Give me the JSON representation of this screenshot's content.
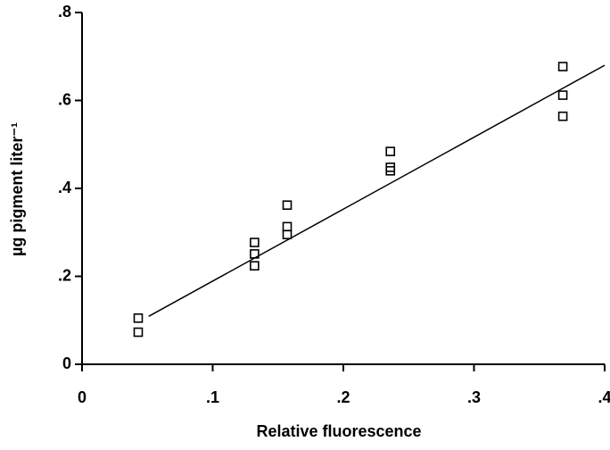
{
  "chart_data": {
    "type": "scatter",
    "xlabel": "Relative fluorescence",
    "ylabel": "µg pigment liter⁻¹",
    "xlim": [
      0,
      0.4
    ],
    "ylim": [
      0,
      0.8
    ],
    "xticks": [
      0,
      {
        "value": 0.1,
        "label": ".1"
      },
      {
        "value": 0.2,
        "label": ".2"
      },
      {
        "value": 0.3,
        "label": ".3"
      },
      {
        "value": 0.4,
        "label": ".4"
      }
    ],
    "yticks": [
      0,
      {
        "value": 0.2,
        "label": ".2"
      },
      {
        "value": 0.4,
        "label": ".4"
      },
      {
        "value": 0.6,
        "label": ".6"
      },
      {
        "value": 0.8,
        "label": ".8"
      }
    ],
    "series": [
      {
        "color": "#000000",
        "marker": "square",
        "x": [
          0.043,
          0.043,
          0.132,
          0.132,
          0.132,
          0.157,
          0.157,
          0.157,
          0.236,
          0.236,
          0.236,
          0.368,
          0.368,
          0.368
        ],
        "values": [
          0.105,
          0.073,
          0.277,
          0.251,
          0.224,
          0.362,
          0.313,
          0.295,
          0.484,
          0.448,
          0.44,
          0.677,
          0.612,
          0.564
        ]
      },
      {
        "color": "#000000",
        "marker": "line",
        "x": [
          0.051,
          0.4
        ],
        "values": [
          0.109,
          0.68
        ]
      }
    ]
  }
}
